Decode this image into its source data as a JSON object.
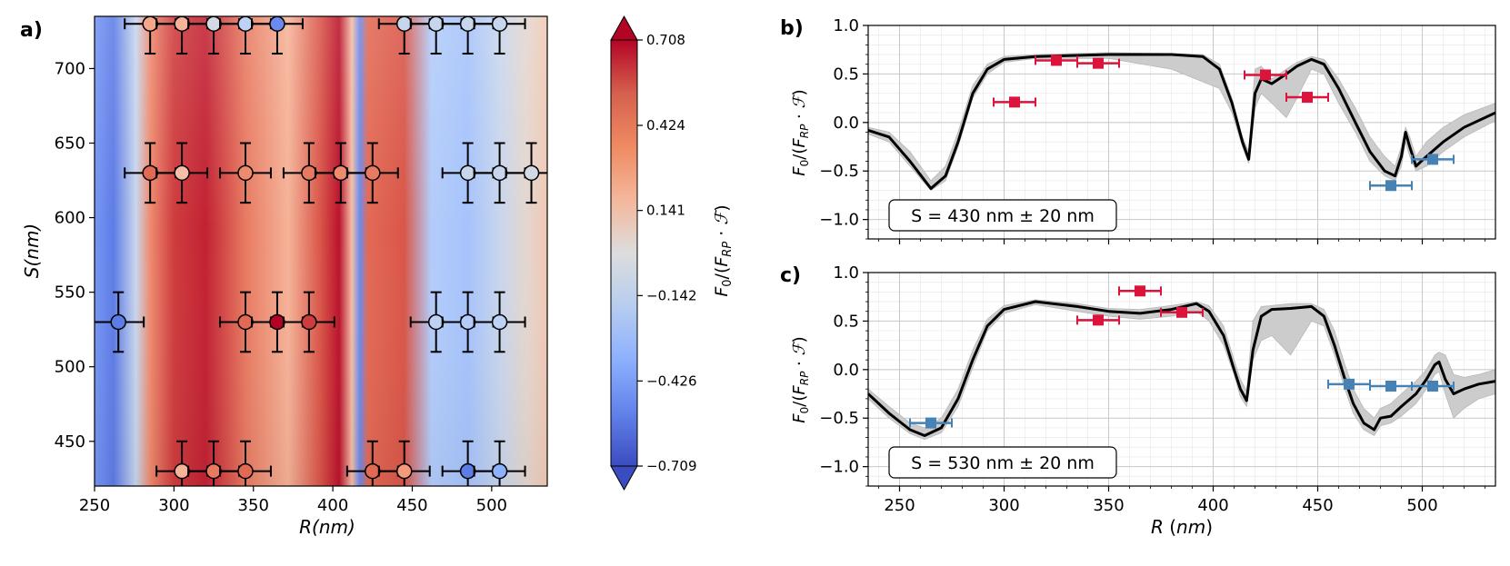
{
  "chart_data": [
    {
      "type": "heatmap",
      "panel_label": "a)",
      "xlabel": "R(nm)",
      "ylabel": "S(nm)",
      "xlim": [
        250,
        535
      ],
      "ylim": [
        420,
        735
      ],
      "xticks": [
        "250",
        "300",
        "350",
        "400",
        "450",
        "500"
      ],
      "yticks": [
        "450",
        "500",
        "550",
        "600",
        "650",
        "700"
      ],
      "colorbar": {
        "label": "F0/(FRP·F)",
        "ticks": [
          "0.708",
          "0.424",
          "0.141",
          "−0.142",
          "−0.426",
          "−0.709"
        ],
        "range": [
          -0.709,
          0.708
        ],
        "cmap": "coolwarm"
      },
      "heatmap_bands": [
        {
          "r": 250,
          "v": -0.45
        },
        {
          "r": 262,
          "v": -0.55
        },
        {
          "r": 276,
          "v": -0.1
        },
        {
          "r": 285,
          "v": 0.4
        },
        {
          "r": 300,
          "v": 0.6
        },
        {
          "r": 320,
          "v": 0.65
        },
        {
          "r": 345,
          "v": 0.45
        },
        {
          "r": 372,
          "v": 0.25
        },
        {
          "r": 392,
          "v": 0.55
        },
        {
          "r": 404,
          "v": 0.68
        },
        {
          "r": 412,
          "v": 0.2
        },
        {
          "r": 417,
          "v": -0.5
        },
        {
          "r": 422,
          "v": 0.5
        },
        {
          "r": 445,
          "v": 0.55
        },
        {
          "r": 462,
          "v": -0.2
        },
        {
          "r": 485,
          "v": -0.25
        },
        {
          "r": 505,
          "v": -0.1
        },
        {
          "r": 522,
          "v": 0.05
        },
        {
          "r": 535,
          "v": 0.15
        }
      ],
      "points": [
        {
          "r": 285,
          "s": 730,
          "v": 0.3
        },
        {
          "r": 305,
          "s": 730,
          "v": 0.25
        },
        {
          "r": 325,
          "s": 730,
          "v": -0.05
        },
        {
          "r": 345,
          "s": 730,
          "v": -0.15
        },
        {
          "r": 365,
          "s": 730,
          "v": -0.5
        },
        {
          "r": 445,
          "s": 730,
          "v": -0.1
        },
        {
          "r": 465,
          "s": 730,
          "v": -0.1
        },
        {
          "r": 485,
          "s": 730,
          "v": -0.1
        },
        {
          "r": 505,
          "s": 730,
          "v": -0.1
        },
        {
          "r": 285,
          "s": 630,
          "v": 0.5
        },
        {
          "r": 305,
          "s": 630,
          "v": 0.2
        },
        {
          "r": 345,
          "s": 630,
          "v": 0.4
        },
        {
          "r": 385,
          "s": 630,
          "v": 0.45
        },
        {
          "r": 405,
          "s": 630,
          "v": 0.4
        },
        {
          "r": 425,
          "s": 630,
          "v": 0.45
        },
        {
          "r": 485,
          "s": 630,
          "v": -0.1
        },
        {
          "r": 505,
          "s": 630,
          "v": -0.1
        },
        {
          "r": 525,
          "s": 630,
          "v": -0.05
        },
        {
          "r": 265,
          "s": 530,
          "v": -0.55
        },
        {
          "r": 345,
          "s": 530,
          "v": 0.5
        },
        {
          "r": 365,
          "s": 530,
          "v": 0.8
        },
        {
          "r": 385,
          "s": 530,
          "v": 0.6
        },
        {
          "r": 465,
          "s": 530,
          "v": -0.15
        },
        {
          "r": 485,
          "s": 530,
          "v": -0.2
        },
        {
          "r": 505,
          "s": 530,
          "v": -0.15
        },
        {
          "r": 305,
          "s": 430,
          "v": 0.25
        },
        {
          "r": 325,
          "s": 430,
          "v": 0.45
        },
        {
          "r": 345,
          "s": 430,
          "v": 0.5
        },
        {
          "r": 425,
          "s": 430,
          "v": 0.5
        },
        {
          "r": 445,
          "s": 430,
          "v": 0.35
        },
        {
          "r": 485,
          "s": 430,
          "v": -0.55
        },
        {
          "r": 505,
          "s": 430,
          "v": -0.35
        }
      ],
      "xerr": 10,
      "yerr": 20
    },
    {
      "type": "line",
      "panel_label": "b)",
      "ylabel": "F0/(FRP·F)",
      "xlim": [
        235,
        535
      ],
      "ylim": [
        -1.2,
        1.0
      ],
      "yticks": [
        "1.0",
        "0.5",
        "0.0",
        "−0.5",
        "−1.0"
      ],
      "annotation": "S = 430 nm ± 20 nm",
      "curve": [
        [
          235,
          -0.08
        ],
        [
          245,
          -0.15
        ],
        [
          255,
          -0.4
        ],
        [
          265,
          -0.68
        ],
        [
          272,
          -0.55
        ],
        [
          278,
          -0.2
        ],
        [
          285,
          0.3
        ],
        [
          292,
          0.55
        ],
        [
          300,
          0.65
        ],
        [
          315,
          0.68
        ],
        [
          350,
          0.7
        ],
        [
          380,
          0.7
        ],
        [
          395,
          0.68
        ],
        [
          403,
          0.55
        ],
        [
          409,
          0.2
        ],
        [
          414,
          -0.2
        ],
        [
          417,
          -0.38
        ],
        [
          420,
          0.3
        ],
        [
          423,
          0.45
        ],
        [
          428,
          0.4
        ],
        [
          435,
          0.5
        ],
        [
          440,
          0.58
        ],
        [
          447,
          0.65
        ],
        [
          453,
          0.6
        ],
        [
          460,
          0.35
        ],
        [
          468,
          0.0
        ],
        [
          475,
          -0.3
        ],
        [
          482,
          -0.5
        ],
        [
          487,
          -0.55
        ],
        [
          490,
          -0.35
        ],
        [
          492,
          -0.1
        ],
        [
          494,
          -0.25
        ],
        [
          497,
          -0.45
        ],
        [
          502,
          -0.35
        ],
        [
          510,
          -0.2
        ],
        [
          520,
          -0.05
        ],
        [
          535,
          0.1
        ]
      ],
      "band_upper": [
        [
          235,
          -0.05
        ],
        [
          245,
          -0.1
        ],
        [
          255,
          -0.3
        ],
        [
          265,
          -0.6
        ],
        [
          272,
          -0.45
        ],
        [
          278,
          -0.1
        ],
        [
          285,
          0.38
        ],
        [
          292,
          0.6
        ],
        [
          300,
          0.68
        ],
        [
          315,
          0.7
        ],
        [
          350,
          0.72
        ],
        [
          380,
          0.71
        ],
        [
          395,
          0.7
        ],
        [
          403,
          0.6
        ],
        [
          409,
          0.25
        ],
        [
          414,
          -0.15
        ],
        [
          417,
          -0.3
        ],
        [
          420,
          0.55
        ],
        [
          423,
          0.58
        ],
        [
          428,
          0.45
        ],
        [
          435,
          0.55
        ],
        [
          440,
          0.62
        ],
        [
          447,
          0.68
        ],
        [
          453,
          0.65
        ],
        [
          460,
          0.45
        ],
        [
          468,
          0.15
        ],
        [
          475,
          -0.15
        ],
        [
          482,
          -0.35
        ],
        [
          487,
          -0.45
        ],
        [
          490,
          -0.25
        ],
        [
          492,
          -0.05
        ],
        [
          494,
          -0.15
        ],
        [
          497,
          -0.35
        ],
        [
          502,
          -0.2
        ],
        [
          510,
          -0.05
        ],
        [
          520,
          0.08
        ],
        [
          535,
          0.2
        ]
      ],
      "band_lower": [
        [
          235,
          -0.12
        ],
        [
          245,
          -0.2
        ],
        [
          255,
          -0.45
        ],
        [
          265,
          -0.7
        ],
        [
          272,
          -0.6
        ],
        [
          278,
          -0.25
        ],
        [
          285,
          0.25
        ],
        [
          292,
          0.5
        ],
        [
          300,
          0.62
        ],
        [
          315,
          0.66
        ],
        [
          350,
          0.66
        ],
        [
          380,
          0.55
        ],
        [
          395,
          0.42
        ],
        [
          403,
          0.35
        ],
        [
          409,
          0.1
        ],
        [
          414,
          -0.25
        ],
        [
          417,
          -0.42
        ],
        [
          420,
          0.15
        ],
        [
          423,
          0.3
        ],
        [
          428,
          0.2
        ],
        [
          435,
          0.05
        ],
        [
          440,
          0.25
        ],
        [
          447,
          0.55
        ],
        [
          453,
          0.5
        ],
        [
          460,
          0.2
        ],
        [
          468,
          -0.1
        ],
        [
          475,
          -0.4
        ],
        [
          482,
          -0.55
        ],
        [
          487,
          -0.6
        ],
        [
          490,
          -0.45
        ],
        [
          492,
          -0.2
        ],
        [
          494,
          -0.35
        ],
        [
          497,
          -0.5
        ],
        [
          502,
          -0.45
        ],
        [
          510,
          -0.3
        ],
        [
          520,
          -0.15
        ],
        [
          535,
          0.02
        ]
      ],
      "points": [
        {
          "x": 305,
          "y": 0.21,
          "c": "red"
        },
        {
          "x": 325,
          "y": 0.64,
          "c": "red"
        },
        {
          "x": 345,
          "y": 0.61,
          "c": "red"
        },
        {
          "x": 425,
          "y": 0.49,
          "c": "red"
        },
        {
          "x": 445,
          "y": 0.26,
          "c": "red"
        },
        {
          "x": 485,
          "y": -0.65,
          "c": "blue"
        },
        {
          "x": 505,
          "y": -0.38,
          "c": "blue"
        }
      ],
      "xerr": 10
    },
    {
      "type": "line",
      "panel_label": "c)",
      "xlabel": "R (nm)",
      "ylabel": "F0/(FRP·F)",
      "xlim": [
        235,
        535
      ],
      "ylim": [
        -1.2,
        1.0
      ],
      "xticks": [
        "250",
        "300",
        "350",
        "400",
        "450",
        "500"
      ],
      "yticks": [
        "1.0",
        "0.5",
        "0.0",
        "−0.5",
        "−1.0"
      ],
      "annotation": "S = 530 nm ± 20 nm",
      "curve": [
        [
          235,
          -0.25
        ],
        [
          245,
          -0.45
        ],
        [
          255,
          -0.62
        ],
        [
          262,
          -0.68
        ],
        [
          270,
          -0.6
        ],
        [
          278,
          -0.3
        ],
        [
          285,
          0.1
        ],
        [
          292,
          0.45
        ],
        [
          300,
          0.62
        ],
        [
          315,
          0.7
        ],
        [
          335,
          0.65
        ],
        [
          350,
          0.6
        ],
        [
          365,
          0.58
        ],
        [
          380,
          0.62
        ],
        [
          392,
          0.68
        ],
        [
          398,
          0.6
        ],
        [
          405,
          0.35
        ],
        [
          410,
          0.0
        ],
        [
          413,
          -0.2
        ],
        [
          416,
          -0.32
        ],
        [
          419,
          0.2
        ],
        [
          423,
          0.55
        ],
        [
          428,
          0.62
        ],
        [
          437,
          0.63
        ],
        [
          447,
          0.65
        ],
        [
          453,
          0.55
        ],
        [
          458,
          0.25
        ],
        [
          463,
          -0.1
        ],
        [
          467,
          -0.35
        ],
        [
          472,
          -0.55
        ],
        [
          477,
          -0.62
        ],
        [
          480,
          -0.5
        ],
        [
          485,
          -0.48
        ],
        [
          490,
          -0.38
        ],
        [
          497,
          -0.25
        ],
        [
          502,
          -0.1
        ],
        [
          506,
          0.05
        ],
        [
          508,
          0.08
        ],
        [
          511,
          -0.1
        ],
        [
          515,
          -0.25
        ],
        [
          520,
          -0.2
        ],
        [
          527,
          -0.15
        ],
        [
          535,
          -0.12
        ]
      ],
      "band_upper": [
        [
          235,
          -0.2
        ],
        [
          245,
          -0.38
        ],
        [
          255,
          -0.55
        ],
        [
          262,
          -0.6
        ],
        [
          270,
          -0.5
        ],
        [
          278,
          -0.2
        ],
        [
          285,
          0.2
        ],
        [
          292,
          0.52
        ],
        [
          300,
          0.66
        ],
        [
          315,
          0.72
        ],
        [
          335,
          0.68
        ],
        [
          350,
          0.63
        ],
        [
          365,
          0.62
        ],
        [
          380,
          0.66
        ],
        [
          392,
          0.7
        ],
        [
          398,
          0.66
        ],
        [
          405,
          0.45
        ],
        [
          410,
          0.1
        ],
        [
          413,
          -0.1
        ],
        [
          416,
          -0.22
        ],
        [
          419,
          0.5
        ],
        [
          423,
          0.65
        ],
        [
          428,
          0.66
        ],
        [
          437,
          0.68
        ],
        [
          447,
          0.68
        ],
        [
          453,
          0.62
        ],
        [
          458,
          0.4
        ],
        [
          463,
          0.05
        ],
        [
          467,
          -0.2
        ],
        [
          472,
          -0.4
        ],
        [
          477,
          -0.5
        ],
        [
          480,
          -0.4
        ],
        [
          485,
          -0.35
        ],
        [
          490,
          -0.25
        ],
        [
          497,
          -0.12
        ],
        [
          502,
          0.0
        ],
        [
          506,
          0.15
        ],
        [
          508,
          0.18
        ],
        [
          511,
          0.15
        ],
        [
          515,
          -0.05
        ],
        [
          520,
          -0.08
        ],
        [
          527,
          -0.05
        ],
        [
          535,
          0.0
        ]
      ],
      "band_lower": [
        [
          235,
          -0.3
        ],
        [
          245,
          -0.5
        ],
        [
          255,
          -0.66
        ],
        [
          262,
          -0.72
        ],
        [
          270,
          -0.65
        ],
        [
          278,
          -0.38
        ],
        [
          285,
          0.02
        ],
        [
          292,
          0.4
        ],
        [
          300,
          0.58
        ],
        [
          315,
          0.67
        ],
        [
          335,
          0.6
        ],
        [
          350,
          0.55
        ],
        [
          365,
          0.52
        ],
        [
          380,
          0.55
        ],
        [
          392,
          0.6
        ],
        [
          398,
          0.5
        ],
        [
          405,
          0.25
        ],
        [
          410,
          -0.05
        ],
        [
          413,
          -0.28
        ],
        [
          416,
          -0.38
        ],
        [
          419,
          0.1
        ],
        [
          423,
          0.3
        ],
        [
          428,
          0.35
        ],
        [
          437,
          0.15
        ],
        [
          447,
          0.5
        ],
        [
          453,
          0.45
        ],
        [
          458,
          0.15
        ],
        [
          463,
          -0.2
        ],
        [
          467,
          -0.45
        ],
        [
          472,
          -0.62
        ],
        [
          477,
          -0.68
        ],
        [
          480,
          -0.58
        ],
        [
          485,
          -0.55
        ],
        [
          490,
          -0.48
        ],
        [
          497,
          -0.35
        ],
        [
          502,
          -0.2
        ],
        [
          506,
          -0.05
        ],
        [
          508,
          -0.02
        ],
        [
          511,
          -0.25
        ],
        [
          515,
          -0.5
        ],
        [
          520,
          -0.4
        ],
        [
          527,
          -0.3
        ],
        [
          535,
          -0.25
        ]
      ],
      "points": [
        {
          "x": 265,
          "y": -0.55,
          "c": "blue"
        },
        {
          "x": 345,
          "y": 0.51,
          "c": "red"
        },
        {
          "x": 365,
          "y": 0.81,
          "c": "red"
        },
        {
          "x": 385,
          "y": 0.59,
          "c": "red"
        },
        {
          "x": 465,
          "y": -0.15,
          "c": "blue"
        },
        {
          "x": 485,
          "y": -0.17,
          "c": "blue"
        },
        {
          "x": 505,
          "y": -0.17,
          "c": "blue"
        }
      ],
      "xerr": 10
    }
  ],
  "colors": {
    "red": "#dc143c",
    "blue": "#4682b4",
    "band": "#cccccc",
    "curve": "#000000"
  }
}
